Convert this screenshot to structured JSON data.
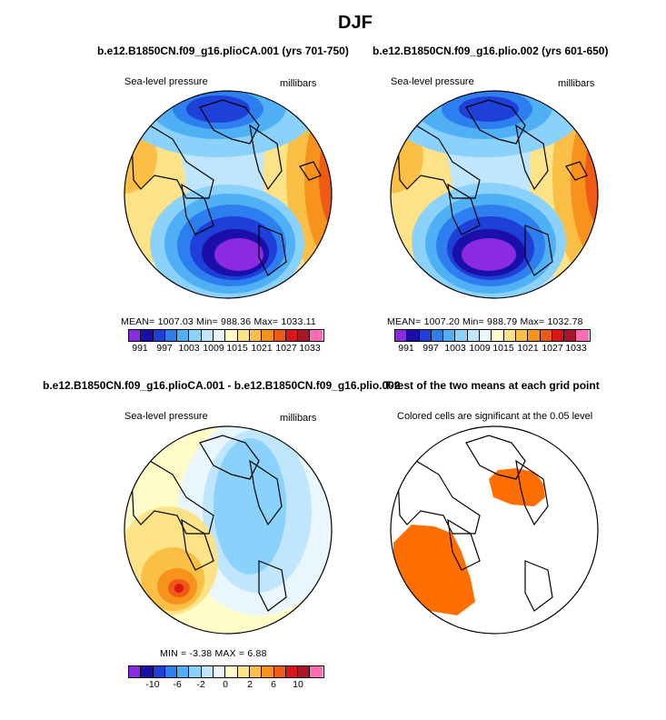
{
  "figure": {
    "title": "DJF"
  },
  "panels": [
    {
      "id": "case1",
      "title": "b.e12.B1850CN.f09_g16.plioCA.001 (yrs 701-750)",
      "left_label": "Sea-level pressure",
      "right_label": "millibars",
      "stats": "MEAN= 1007.03   Min= 988.36   Max= 1033.11"
    },
    {
      "id": "case2",
      "title": "b.e12.B1850CN.f09_g16.plio.002 (yrs 601-650)",
      "left_label": "Sea-level pressure",
      "right_label": "millibars",
      "stats": "MEAN= 1007.20   Min= 988.79   Max= 1032.78"
    },
    {
      "id": "difference",
      "title": "b.e12.B1850CN.f09_g16.plioCA.001 - b.e12.B1850CN.f09_g16.plio.002",
      "left_label": "Sea-level pressure",
      "right_label": "millibars",
      "stats": "MIN =   -3.38  MAX =   6.88"
    },
    {
      "id": "ttest",
      "title": "T-test of the two means at each grid point",
      "left_label": "Colored cells are significant at the 0.05 level"
    }
  ],
  "chart_data": [
    {
      "type": "heatmap",
      "name": "case1 sea-level pressure (polar stereographic)",
      "units": "millibars",
      "levels": [
        991,
        994,
        997,
        1000,
        1003,
        1006,
        1009,
        1012,
        1015,
        1018,
        1021,
        1024,
        1027,
        1030,
        1033
      ],
      "colorbar_labels": [
        "991",
        "997",
        "1003",
        "1009",
        "1015",
        "1021",
        "1027",
        "1033"
      ],
      "mean": 1007.03,
      "min": 988.36,
      "max": 1033.11
    },
    {
      "type": "heatmap",
      "name": "case2 sea-level pressure (polar stereographic)",
      "units": "millibars",
      "levels": [
        991,
        994,
        997,
        1000,
        1003,
        1006,
        1009,
        1012,
        1015,
        1018,
        1021,
        1024,
        1027,
        1030,
        1033
      ],
      "colorbar_labels": [
        "991",
        "997",
        "1003",
        "1009",
        "1015",
        "1021",
        "1027",
        "1033"
      ],
      "mean": 1007.2,
      "min": 988.79,
      "max": 1032.78
    },
    {
      "type": "heatmap",
      "name": "difference (case1 - case2)",
      "units": "millibars",
      "levels": [
        -12,
        -10,
        -8,
        -6,
        -4,
        -2,
        -1,
        0,
        1,
        2,
        4,
        6,
        8,
        10,
        12
      ],
      "colorbar_labels": [
        "-10",
        "-6",
        "-2",
        "0",
        "2",
        "6",
        "10"
      ],
      "min": -3.38,
      "max": 6.88
    },
    {
      "type": "heatmap",
      "name": "t-test significance",
      "significance_level": 0.05,
      "significant_color": "#ff6e00"
    }
  ],
  "colors": {
    "palette": [
      "#8a2be2",
      "#1a0fa8",
      "#1e3fd8",
      "#2d7ff0",
      "#4fb0f5",
      "#8ad2fb",
      "#bfe6fc",
      "#e9f6fd",
      "#fffcc8",
      "#fde387",
      "#fbbf45",
      "#f7921c",
      "#ef5a14",
      "#db1616",
      "#a9162a",
      "#ff6eb4"
    ],
    "land_outline": "#000000"
  }
}
